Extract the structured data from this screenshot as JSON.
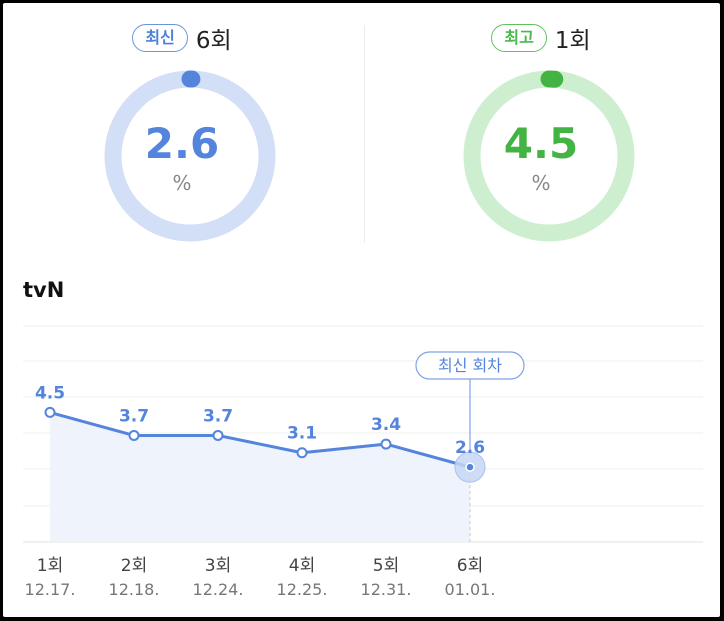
{
  "summary": {
    "latest": {
      "badge": "최신",
      "episode": "6회",
      "value": "2.6",
      "unit": "%"
    },
    "best": {
      "badge": "최고",
      "episode": "1회",
      "value": "4.5",
      "unit": "%"
    }
  },
  "colors": {
    "blue": "#5484dc",
    "blue_ring": "#d3def7",
    "green": "#43b343",
    "green_ring": "#cdefcf",
    "area": "#eef3fc"
  },
  "chart_data": {
    "type": "area",
    "title": "tvN",
    "series": [
      {
        "values": [
          4.5,
          3.7,
          3.7,
          3.1,
          3.4,
          2.6
        ]
      }
    ],
    "categories": [
      "1회",
      "2회",
      "3회",
      "4회",
      "5회",
      "6회"
    ],
    "dates": [
      "12.17.",
      "12.18.",
      "12.24.",
      "12.25.",
      "12.31.",
      "01.01."
    ],
    "data_labels": [
      "4.5",
      "3.7",
      "3.7",
      "3.1",
      "3.4",
      "2.6"
    ],
    "highlight_index": 5,
    "highlight_label": "최신 회차",
    "ylim": [
      0,
      7.5
    ],
    "grid": true
  }
}
